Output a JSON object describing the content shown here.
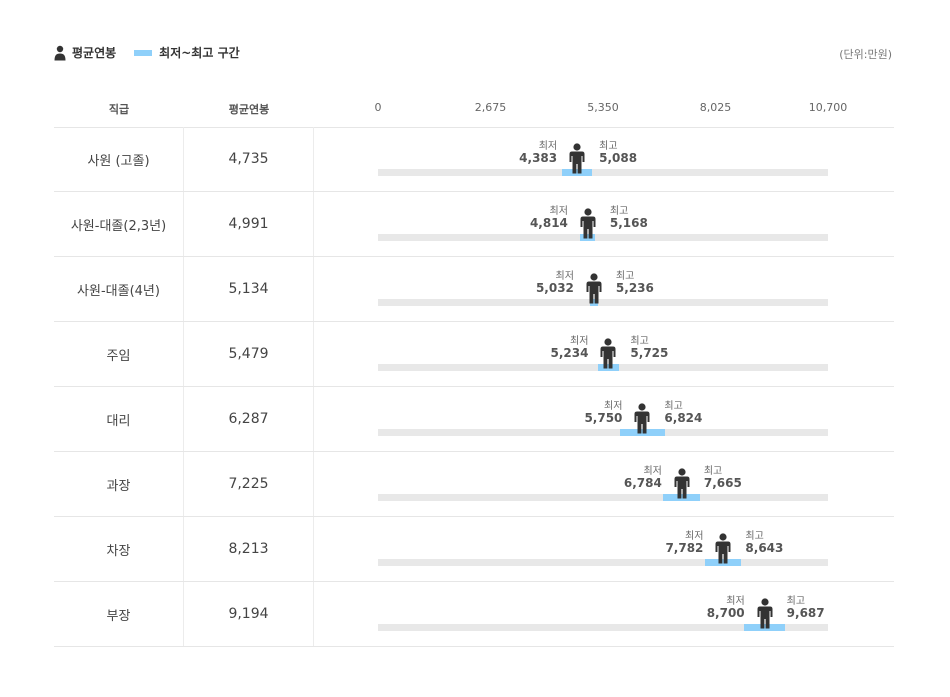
{
  "legend": {
    "avg_label": "평균연봉",
    "range_label": "최저~최고 구간"
  },
  "unit": "(단위:만원)",
  "header": {
    "col1": "직급",
    "col2": "평균연봉"
  },
  "colors": {
    "range": "#8fd0fa",
    "track": "#e8e8e8",
    "person": "#333333"
  },
  "chart_data": {
    "type": "bar",
    "xlim": [
      0,
      10700
    ],
    "ticks": [
      "0",
      "2,675",
      "5,350",
      "8,025",
      "10,700"
    ],
    "tick_values": [
      0,
      2675,
      5350,
      8025,
      10700
    ],
    "min_label": "최저",
    "max_label": "최고",
    "rows": [
      {
        "rank": "사원 (고졸)",
        "avg": 4735,
        "avg_label": "4,735",
        "min": 4383,
        "min_label": "4,383",
        "max": 5088,
        "max_label": "5,088"
      },
      {
        "rank": "사원-대졸(2,3년)",
        "avg": 4991,
        "avg_label": "4,991",
        "min": 4814,
        "min_label": "4,814",
        "max": 5168,
        "max_label": "5,168"
      },
      {
        "rank": "사원-대졸(4년)",
        "avg": 5134,
        "avg_label": "5,134",
        "min": 5032,
        "min_label": "5,032",
        "max": 5236,
        "max_label": "5,236"
      },
      {
        "rank": "주임",
        "avg": 5479,
        "avg_label": "5,479",
        "min": 5234,
        "min_label": "5,234",
        "max": 5725,
        "max_label": "5,725"
      },
      {
        "rank": "대리",
        "avg": 6287,
        "avg_label": "6,287",
        "min": 5750,
        "min_label": "5,750",
        "max": 6824,
        "max_label": "6,824"
      },
      {
        "rank": "과장",
        "avg": 7225,
        "avg_label": "7,225",
        "min": 6784,
        "min_label": "6,784",
        "max": 7665,
        "max_label": "7,665"
      },
      {
        "rank": "차장",
        "avg": 8213,
        "avg_label": "8,213",
        "min": 7782,
        "min_label": "7,782",
        "max": 8643,
        "max_label": "8,643"
      },
      {
        "rank": "부장",
        "avg": 9194,
        "avg_label": "9,194",
        "min": 8700,
        "min_label": "8,700",
        "max": 9687,
        "max_label": "9,687"
      }
    ]
  }
}
